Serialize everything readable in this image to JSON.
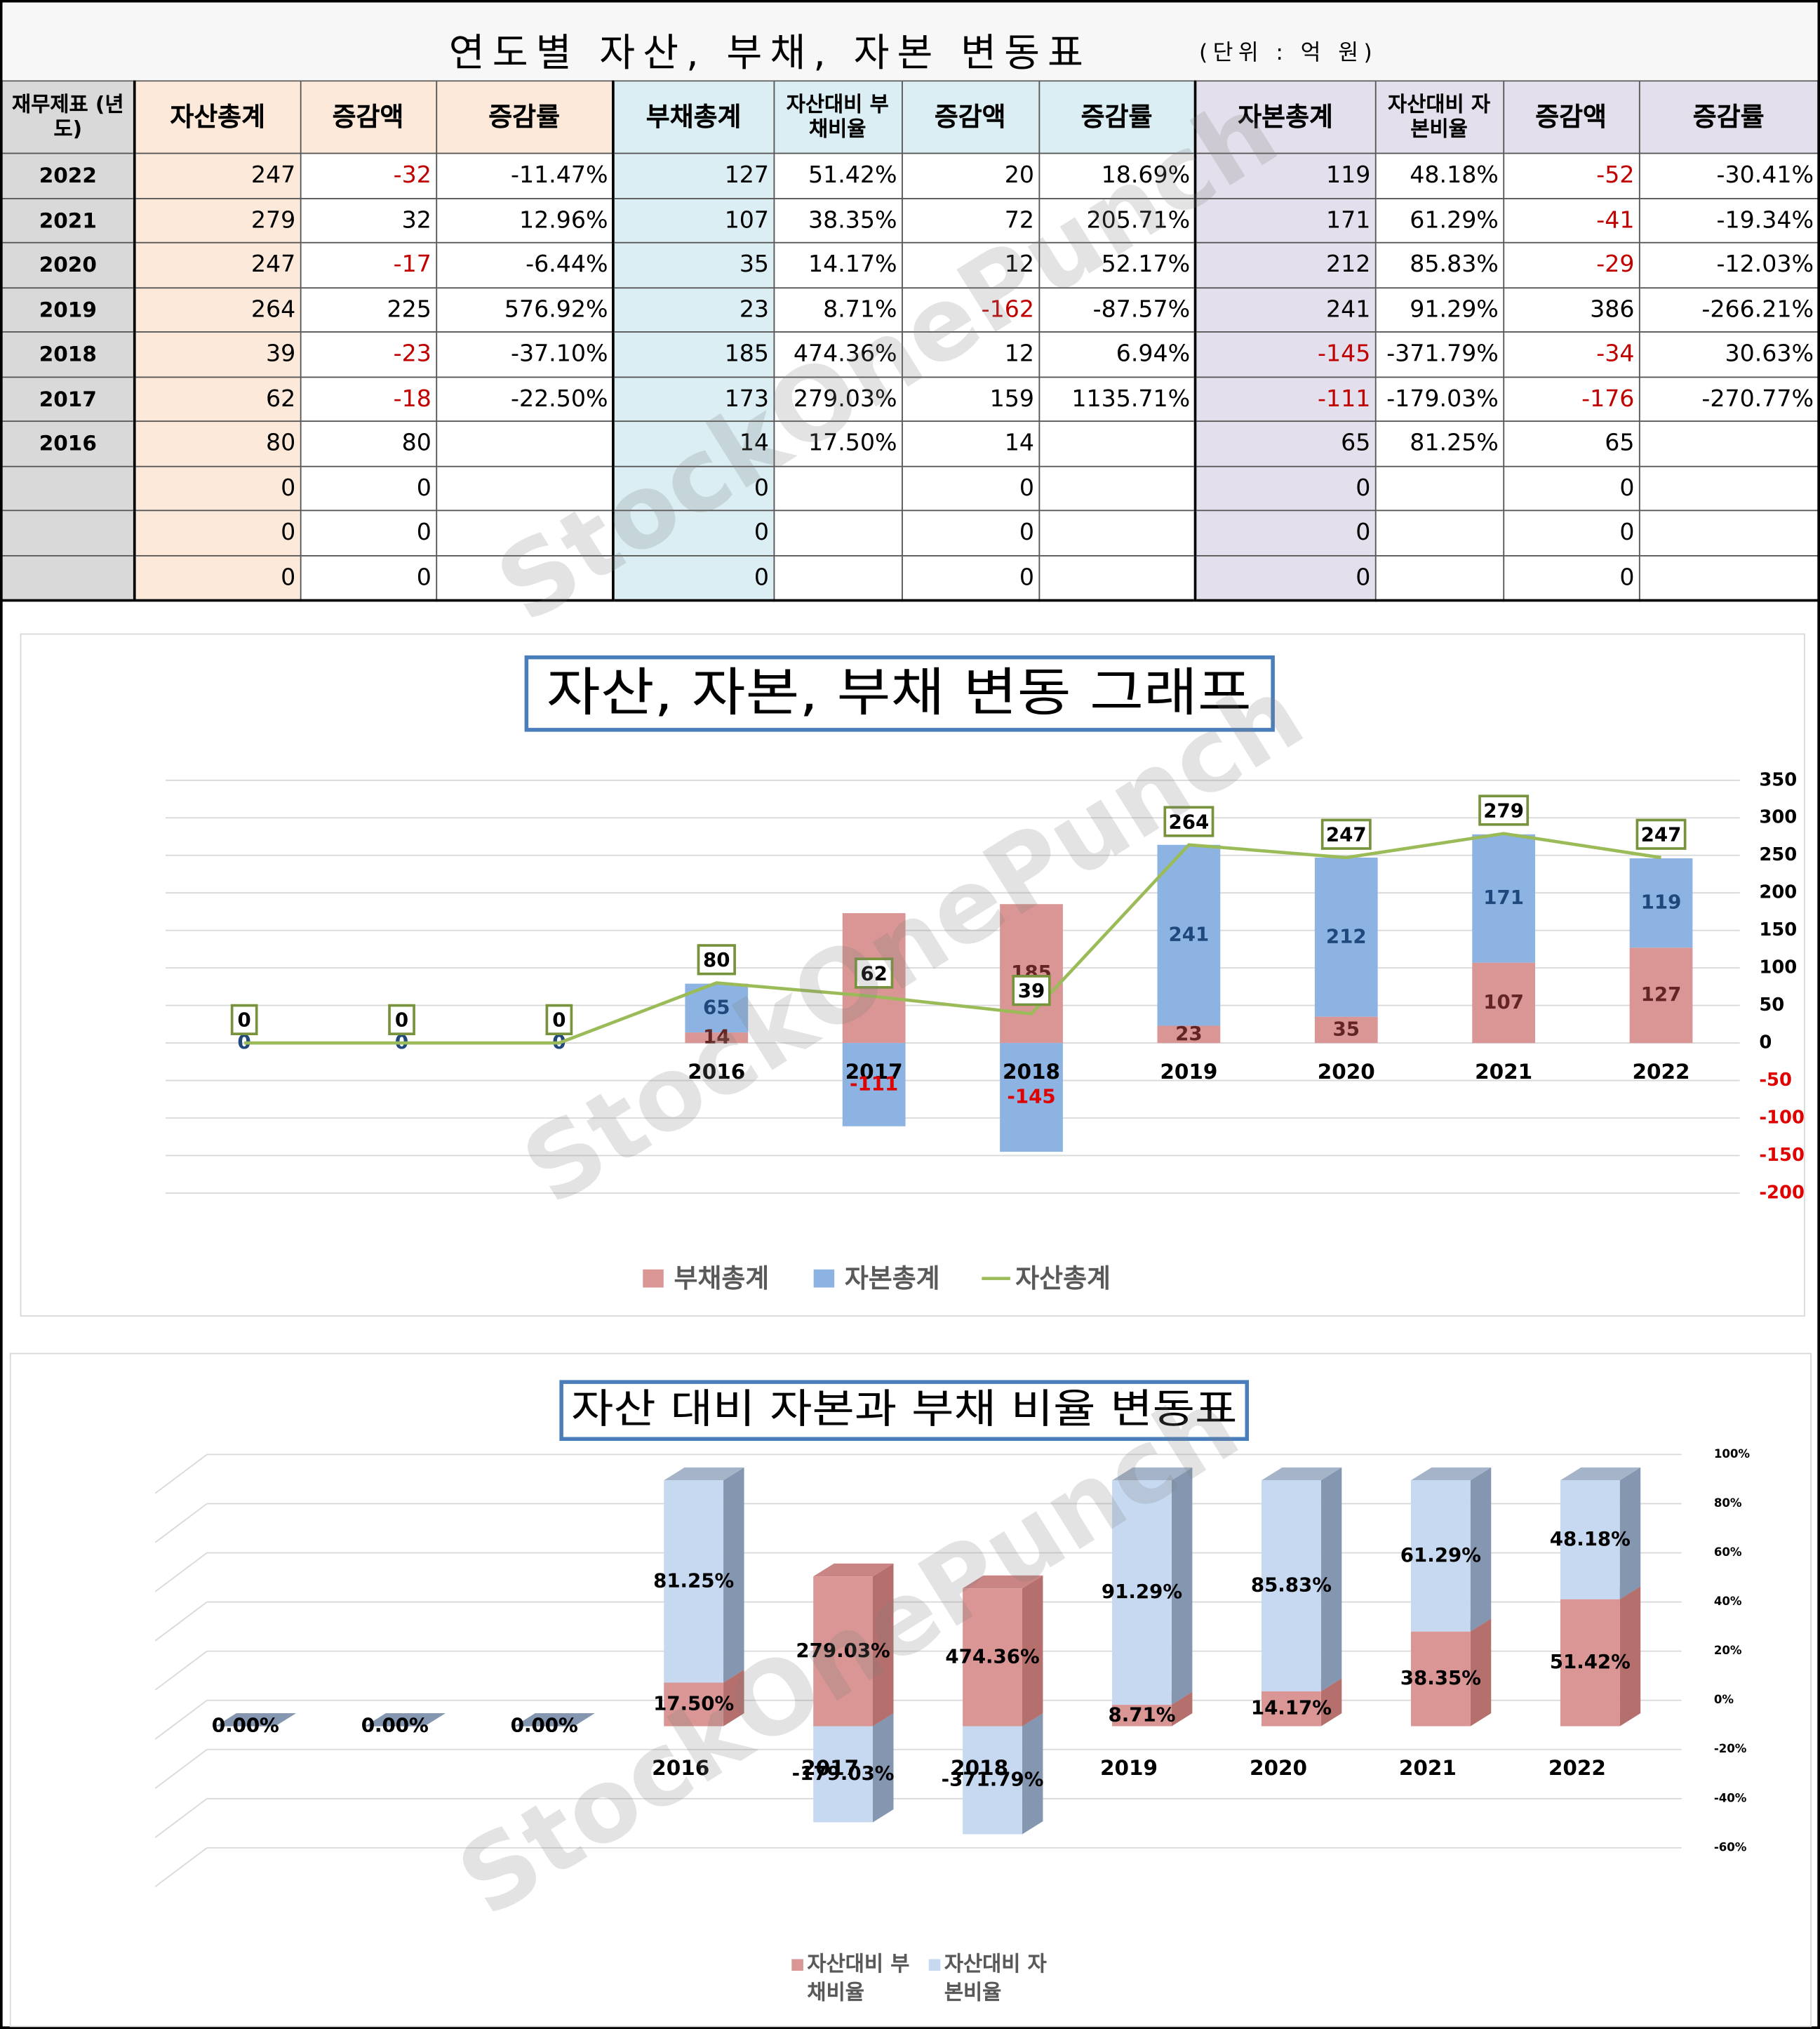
{
  "watermark": "StockOnePunch",
  "table": {
    "title": "연도별 자산, 부채, 자본 변동표",
    "unit": "(단위 : 억 원)",
    "header": [
      "재무제표 (년도)",
      "자산총계",
      "증감액",
      "증감률",
      "부채총계",
      "자산대비 부채비율",
      "증감액",
      "증감률",
      "자본총계",
      "자산대비 자본비율",
      "증감액",
      "증감률"
    ],
    "rows": [
      [
        "2022",
        "247",
        "-32",
        "-11.47%",
        "127",
        "51.42%",
        "20",
        "18.69%",
        "119",
        "48.18%",
        "-52",
        "-30.41%"
      ],
      [
        "2021",
        "279",
        "32",
        "12.96%",
        "107",
        "38.35%",
        "72",
        "205.71%",
        "171",
        "61.29%",
        "-41",
        "-19.34%"
      ],
      [
        "2020",
        "247",
        "-17",
        "-6.44%",
        "35",
        "14.17%",
        "12",
        "52.17%",
        "212",
        "85.83%",
        "-29",
        "-12.03%"
      ],
      [
        "2019",
        "264",
        "225",
        "576.92%",
        "23",
        "8.71%",
        "-162",
        "-87.57%",
        "241",
        "91.29%",
        "386",
        "-266.21%"
      ],
      [
        "2018",
        "39",
        "-23",
        "-37.10%",
        "185",
        "474.36%",
        "12",
        "6.94%",
        "-145",
        "-371.79%",
        "-34",
        "30.63%"
      ],
      [
        "2017",
        "62",
        "-18",
        "-22.50%",
        "173",
        "279.03%",
        "159",
        "1135.71%",
        "-111",
        "-179.03%",
        "-176",
        "-270.77%"
      ],
      [
        "2016",
        "80",
        "80",
        null,
        "14",
        "17.50%",
        "14",
        null,
        "65",
        "81.25%",
        "65",
        null
      ],
      [
        null,
        "0",
        "0",
        null,
        "0",
        null,
        "0",
        null,
        "0",
        null,
        "0",
        null
      ],
      [
        null,
        "0",
        "0",
        null,
        "0",
        null,
        "0",
        null,
        "0",
        null,
        "0",
        null
      ],
      [
        null,
        "0",
        "0",
        null,
        "0",
        null,
        "0",
        null,
        "0",
        null,
        "0",
        null
      ]
    ]
  },
  "chart_data": [
    {
      "type": "bar",
      "title": "자산, 자본, 부채 변동 그래프",
      "stacked": true,
      "categories": [
        null,
        null,
        null,
        "2016",
        "2017",
        "2018",
        "2019",
        "2020",
        "2021",
        "2022"
      ],
      "series": [
        {
          "name": "부채총계",
          "type": "bar",
          "color": "#d99694",
          "label_color": "#632523",
          "values": [
            0,
            0,
            0,
            14,
            173,
            185,
            23,
            35,
            107,
            127
          ]
        },
        {
          "name": "자본총계",
          "type": "bar",
          "color": "#8db3e2",
          "label_color": "#1f497d",
          "values": [
            0,
            0,
            0,
            65,
            -111,
            -145,
            241,
            212,
            171,
            119
          ]
        },
        {
          "name": "자산총계",
          "type": "line",
          "color": "#9bbb59",
          "label_color": "#000000",
          "values": [
            0,
            0,
            0,
            80,
            62,
            39,
            264,
            247,
            279,
            247
          ]
        }
      ],
      "ylim": [
        -200,
        350
      ],
      "yticks": [
        -200,
        -150,
        -100,
        -50,
        0,
        50,
        100,
        150,
        200,
        250,
        300,
        350
      ],
      "grid": true,
      "negative_color": "#e00000",
      "legend": "bottom"
    },
    {
      "type": "bar",
      "title": "자산 대비 자본과 부채 비율 변동표",
      "stacking": "percent",
      "three_d": true,
      "categories": [
        null,
        null,
        null,
        "2016",
        "2017",
        "2018",
        "2019",
        "2020",
        "2021",
        "2022"
      ],
      "series": [
        {
          "name": "자산대비 부채비율",
          "color": "#d99694",
          "values": [
            0,
            0,
            0,
            17.5,
            279.03,
            474.36,
            8.71,
            14.17,
            38.35,
            51.42
          ],
          "value_labels": [
            "0.00%",
            "0.00%",
            "0.00%",
            "17.50%",
            "279.03%",
            "474.36%",
            "8.71%",
            "14.17%",
            "38.35%",
            "51.42%"
          ]
        },
        {
          "name": "자산대비 자본비율",
          "color": "#c6d9f1",
          "values": [
            0,
            0,
            0,
            81.25,
            -179.03,
            -371.79,
            91.29,
            85.83,
            61.29,
            48.18
          ],
          "value_labels": [
            "0.00%",
            "0.00%",
            "0.00%",
            "81.25%",
            "-179.03%",
            "-371.79%",
            "91.29%",
            "85.83%",
            "61.29%",
            "48.18%"
          ]
        }
      ],
      "ylim": [
        -60,
        100
      ],
      "yticks": [
        {
          "value": -60,
          "label": "-60%"
        },
        {
          "value": -40,
          "label": "-40%"
        },
        {
          "value": -20,
          "label": "-20%"
        },
        {
          "value": 0,
          "label": "0%"
        },
        {
          "value": 20,
          "label": "20%"
        },
        {
          "value": 40,
          "label": "40%"
        },
        {
          "value": 60,
          "label": "60%"
        },
        {
          "value": 80,
          "label": "80%"
        },
        {
          "value": 100,
          "label": "100%"
        }
      ],
      "grid": true,
      "legend": "bottom"
    }
  ]
}
